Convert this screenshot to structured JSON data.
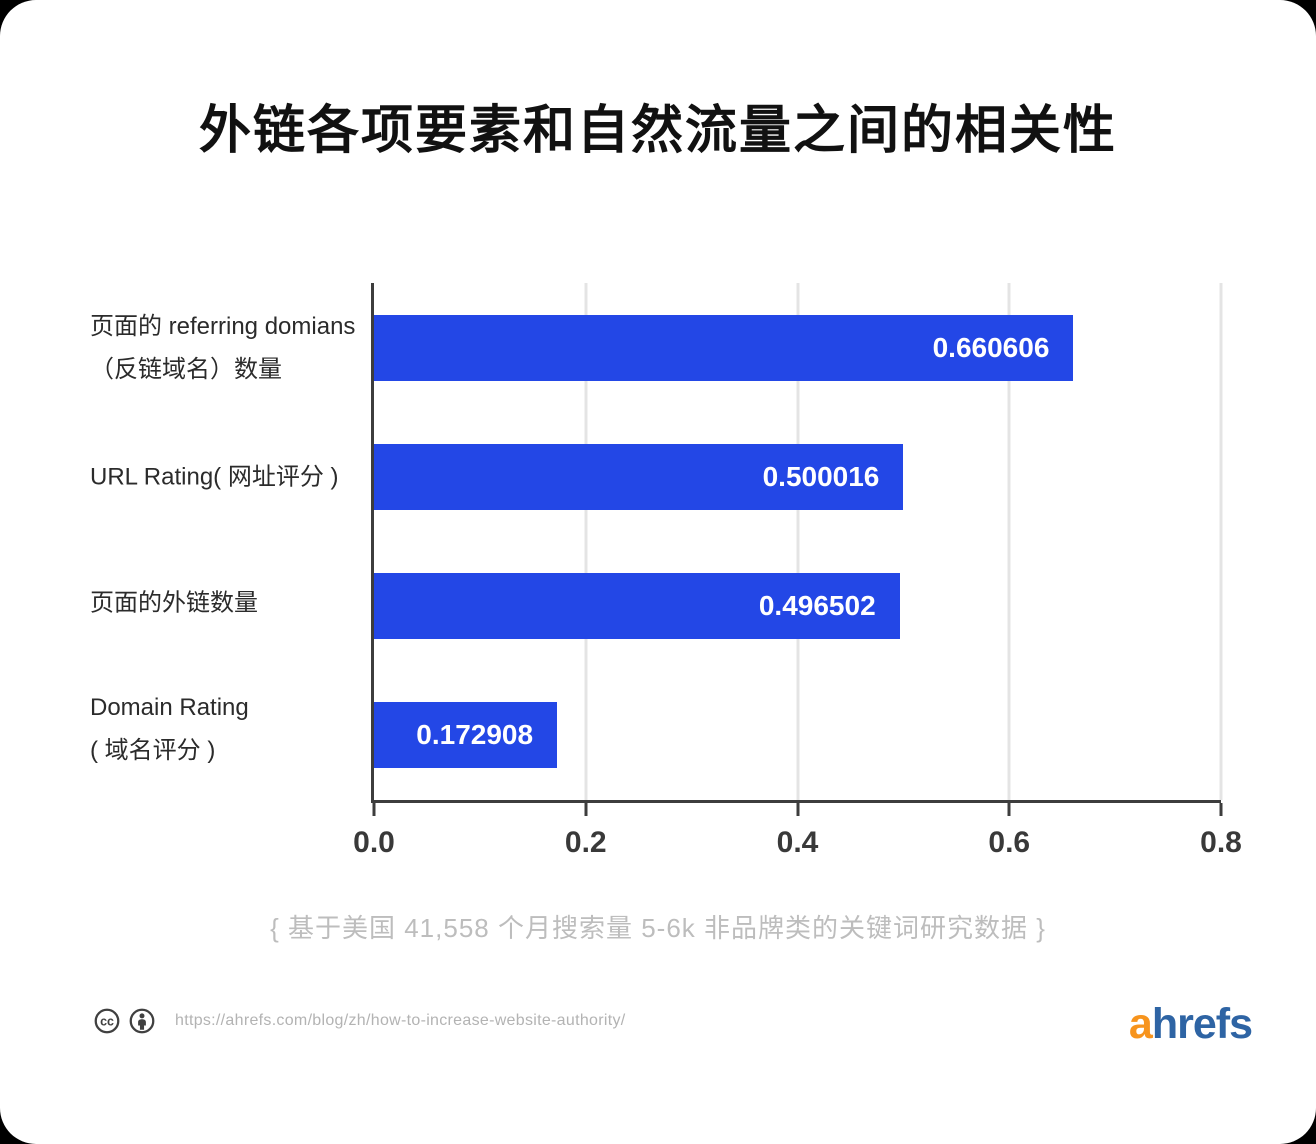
{
  "title": "外链各项要素和自然流量之间的相关性",
  "chart_data": {
    "type": "bar",
    "orientation": "horizontal",
    "title": "外链各项要素和自然流量之间的相关性",
    "categories": [
      "页面的 referring domians（反链域名）数量",
      "URL Rating( 网址评分 )",
      "页面的外链数量",
      "Domain Rating（域名评分）"
    ],
    "category_lines": [
      [
        "页面的 referring domians",
        "（反链域名）数量"
      ],
      [
        "URL Rating( 网址评分 )"
      ],
      [
        "页面的外链数量"
      ],
      [
        "Domain Rating",
        "( 域名评分 )"
      ]
    ],
    "values": [
      0.660606,
      0.500016,
      0.496502,
      0.172908
    ],
    "value_labels": [
      "0.660606",
      "0.500016",
      "0.496502",
      "0.172908"
    ],
    "xlim": [
      0,
      0.8
    ],
    "x_ticks": [
      "0.0",
      "0.2",
      "0.4",
      "0.6",
      "0.8"
    ],
    "grid": true,
    "legend": "none",
    "bar_color": "#2347e6",
    "axis_color": "#3d3d3d",
    "gridline_color": "#e4e4e4"
  },
  "footnote": "{ 基于美国 41,558 个月搜索量 5-6k 非品牌类的关键词研究数据 }",
  "footer": {
    "icons": [
      "cc-icon",
      "attribution-icon"
    ],
    "url": "https://ahrefs.com/blog/zh/how-to-increase-website-authority/",
    "logo": {
      "prefix": "a",
      "suffix": "hrefs",
      "prefix_color": "#f7941d",
      "suffix_color": "#2e64a4"
    }
  }
}
